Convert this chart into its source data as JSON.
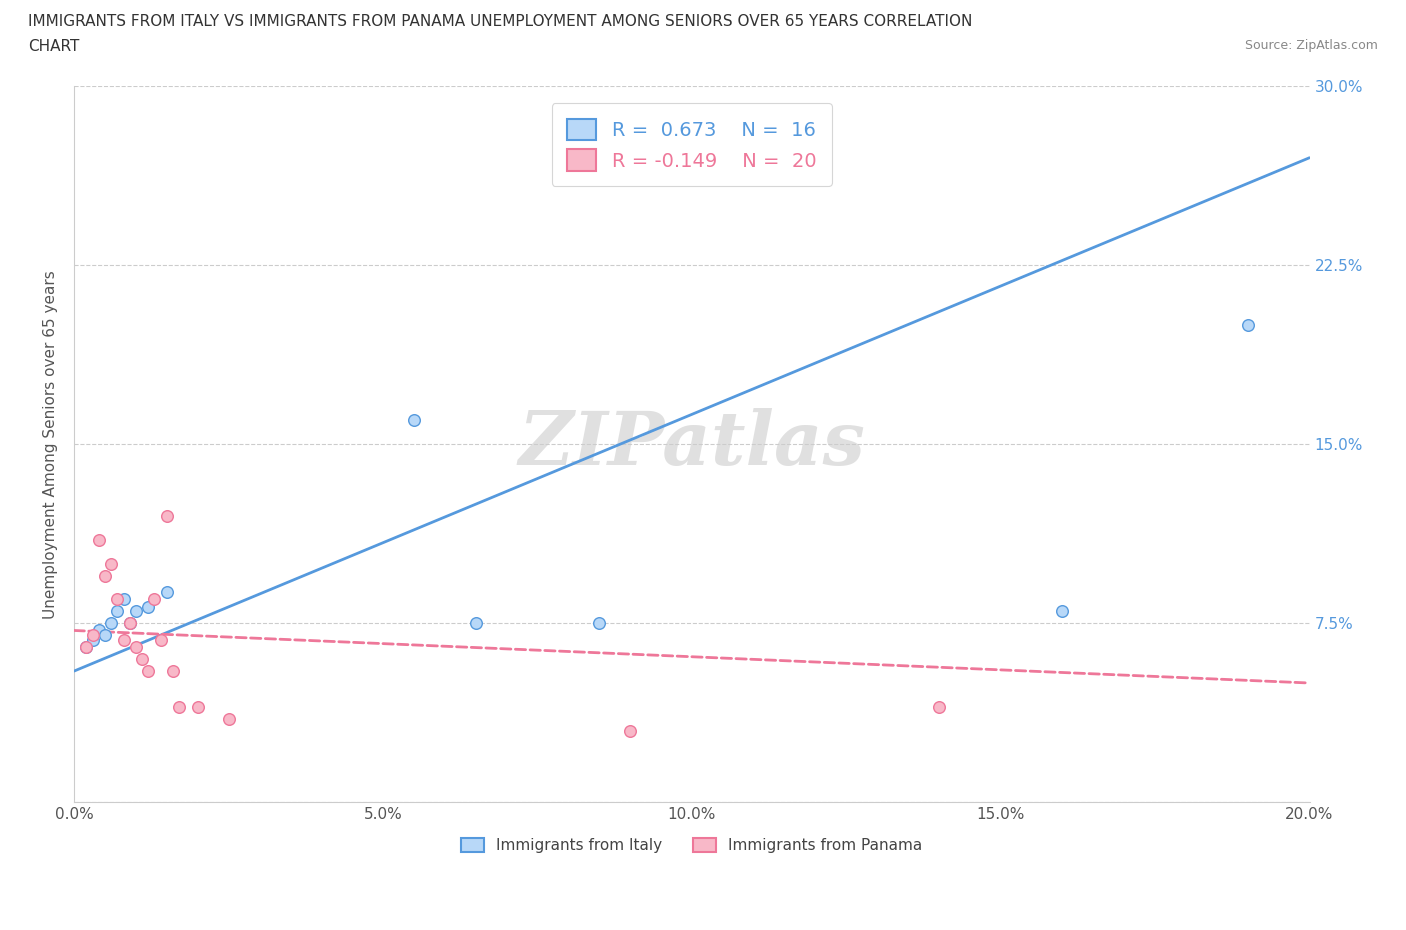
{
  "title_line1": "IMMIGRANTS FROM ITALY VS IMMIGRANTS FROM PANAMA UNEMPLOYMENT AMONG SENIORS OVER 65 YEARS CORRELATION",
  "title_line2": "CHART",
  "source": "Source: ZipAtlas.com",
  "ylabel": "Unemployment Among Seniors over 65 years",
  "italy_R": 0.673,
  "italy_N": 16,
  "panama_R": -0.149,
  "panama_N": 20,
  "italy_color": "#b8d8f8",
  "italy_line_color": "#5599dd",
  "panama_color": "#f8b8c8",
  "panama_line_color": "#ee7799",
  "watermark": "ZIPatlas",
  "italy_x": [
    0.002,
    0.003,
    0.004,
    0.005,
    0.006,
    0.007,
    0.008,
    0.009,
    0.01,
    0.012,
    0.015,
    0.055,
    0.065,
    0.085,
    0.16,
    0.19
  ],
  "italy_y": [
    0.065,
    0.068,
    0.072,
    0.07,
    0.075,
    0.08,
    0.085,
    0.075,
    0.08,
    0.082,
    0.088,
    0.16,
    0.075,
    0.075,
    0.08,
    0.2
  ],
  "panama_x": [
    0.002,
    0.003,
    0.004,
    0.005,
    0.006,
    0.007,
    0.008,
    0.009,
    0.01,
    0.011,
    0.012,
    0.013,
    0.014,
    0.015,
    0.016,
    0.017,
    0.02,
    0.025,
    0.09,
    0.14
  ],
  "panama_y": [
    0.065,
    0.07,
    0.11,
    0.095,
    0.1,
    0.085,
    0.068,
    0.075,
    0.065,
    0.06,
    0.055,
    0.085,
    0.068,
    0.12,
    0.055,
    0.04,
    0.04,
    0.035,
    0.03,
    0.04
  ],
  "italy_trend_x": [
    0.0,
    0.2
  ],
  "italy_trend_y": [
    0.055,
    0.27
  ],
  "panama_trend_x": [
    0.0,
    0.2
  ],
  "panama_trend_y": [
    0.072,
    0.05
  ],
  "xlim": [
    0.0,
    0.2
  ],
  "ylim": [
    0.0,
    0.3
  ],
  "xticks": [
    0.0,
    0.05,
    0.1,
    0.15,
    0.2
  ],
  "yticks": [
    0.0,
    0.075,
    0.15,
    0.225,
    0.3
  ],
  "xticklabels": [
    "0.0%",
    "5.0%",
    "10.0%",
    "15.0%",
    "20.0%"
  ],
  "left_yticklabels": [
    "",
    "",
    "",
    "",
    ""
  ],
  "right_yticklabels": [
    "",
    "7.5%",
    "15.0%",
    "22.5%",
    "30.0%"
  ],
  "background_color": "#ffffff",
  "grid_color": "#cccccc"
}
